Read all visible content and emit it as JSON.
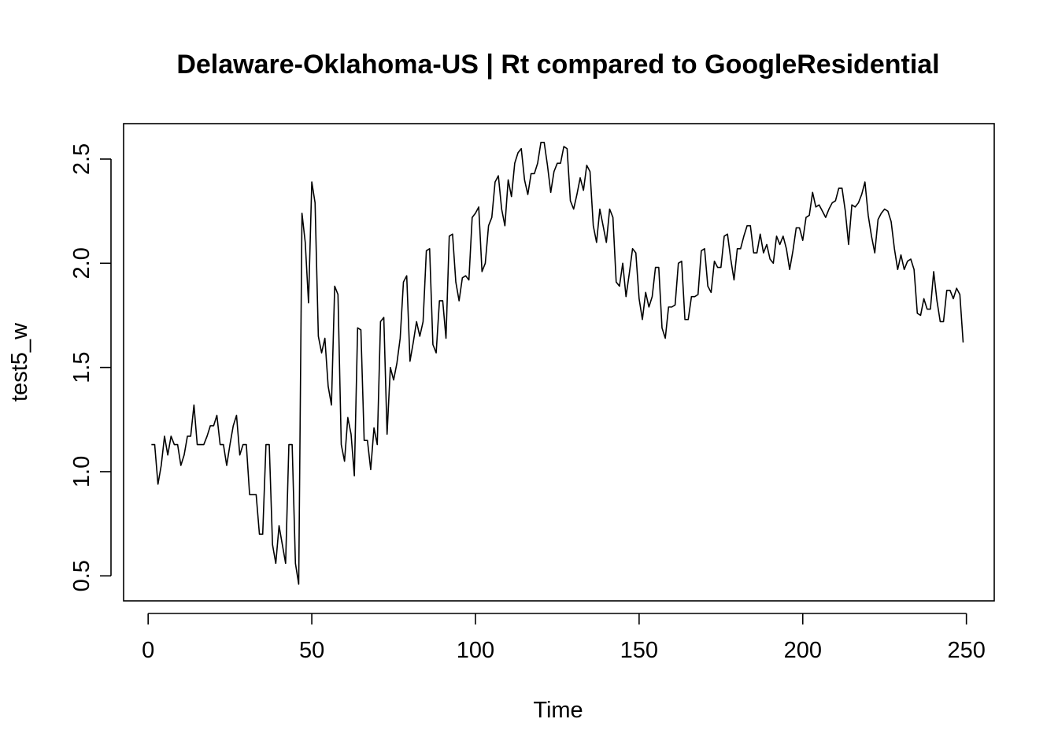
{
  "chart_data": {
    "type": "line",
    "title": "Delaware-Oklahoma-US | Rt compared to GoogleResidential",
    "xlabel": "Time",
    "ylabel": "test5_w",
    "xlim": [
      -7.5,
      258.5
    ],
    "ylim": [
      0.38,
      2.67
    ],
    "x_ticks": [
      0,
      50,
      100,
      150,
      200,
      250
    ],
    "y_ticks": [
      0.5,
      1.0,
      1.5,
      2.0,
      2.5
    ],
    "x_tick_labels": [
      "0",
      "50",
      "100",
      "150",
      "200",
      "250"
    ],
    "y_tick_labels": [
      "0.5",
      "1.0",
      "1.5",
      "2.0",
      "2.5"
    ],
    "grid": false,
    "legend": "none",
    "line_color": "#000000",
    "series": [
      {
        "values": [
          1.13,
          1.13,
          0.94,
          1.03,
          1.17,
          1.08,
          1.17,
          1.13,
          1.13,
          1.03,
          1.08,
          1.17,
          1.17,
          1.32,
          1.13,
          1.13,
          1.13,
          1.17,
          1.22,
          1.22,
          1.27,
          1.13,
          1.13,
          1.03,
          1.13,
          1.22,
          1.27,
          1.08,
          1.13,
          1.13,
          0.89,
          0.89,
          0.89,
          0.7,
          0.7,
          1.13,
          1.13,
          0.65,
          0.56,
          0.74,
          0.65,
          0.56,
          1.13,
          1.13,
          0.56,
          0.46,
          2.24,
          2.1,
          1.81,
          2.39,
          2.29,
          1.65,
          1.57,
          1.64,
          1.41,
          1.32,
          1.89,
          1.85,
          1.13,
          1.05,
          1.26,
          1.18,
          0.98,
          1.69,
          1.68,
          1.15,
          1.15,
          1.01,
          1.21,
          1.13,
          1.72,
          1.74,
          1.18,
          1.5,
          1.44,
          1.52,
          1.64,
          1.91,
          1.94,
          1.53,
          1.62,
          1.72,
          1.65,
          1.72,
          2.06,
          2.07,
          1.61,
          1.57,
          1.82,
          1.82,
          1.64,
          2.13,
          2.14,
          1.91,
          1.82,
          1.93,
          1.94,
          1.92,
          2.22,
          2.24,
          2.27,
          1.96,
          2.0,
          2.18,
          2.22,
          2.39,
          2.42,
          2.26,
          2.18,
          2.4,
          2.32,
          2.48,
          2.53,
          2.55,
          2.4,
          2.33,
          2.43,
          2.43,
          2.48,
          2.58,
          2.58,
          2.47,
          2.34,
          2.44,
          2.48,
          2.48,
          2.56,
          2.55,
          2.3,
          2.26,
          2.33,
          2.41,
          2.35,
          2.47,
          2.44,
          2.18,
          2.1,
          2.26,
          2.18,
          2.1,
          2.26,
          2.22,
          1.91,
          1.89,
          2.0,
          1.84,
          1.95,
          2.07,
          2.05,
          1.83,
          1.73,
          1.86,
          1.79,
          1.84,
          1.98,
          1.98,
          1.69,
          1.64,
          1.79,
          1.79,
          1.8,
          2.0,
          2.01,
          1.73,
          1.73,
          1.84,
          1.84,
          1.85,
          2.06,
          2.07,
          1.89,
          1.86,
          2.01,
          1.98,
          1.98,
          2.13,
          2.14,
          2.02,
          1.92,
          2.07,
          2.07,
          2.13,
          2.18,
          2.18,
          2.05,
          2.05,
          2.14,
          2.05,
          2.09,
          2.02,
          2.0,
          2.13,
          2.09,
          2.13,
          2.07,
          1.97,
          2.06,
          2.17,
          2.17,
          2.11,
          2.22,
          2.23,
          2.34,
          2.27,
          2.28,
          2.25,
          2.22,
          2.26,
          2.29,
          2.3,
          2.36,
          2.36,
          2.25,
          2.09,
          2.28,
          2.27,
          2.29,
          2.33,
          2.39,
          2.23,
          2.13,
          2.05,
          2.21,
          2.24,
          2.26,
          2.25,
          2.2,
          2.07,
          1.97,
          2.04,
          1.97,
          2.01,
          2.02,
          1.97,
          1.76,
          1.75,
          1.83,
          1.78,
          1.78,
          1.96,
          1.82,
          1.72,
          1.72,
          1.87,
          1.87,
          1.83,
          1.88,
          1.85,
          1.62
        ]
      }
    ]
  }
}
